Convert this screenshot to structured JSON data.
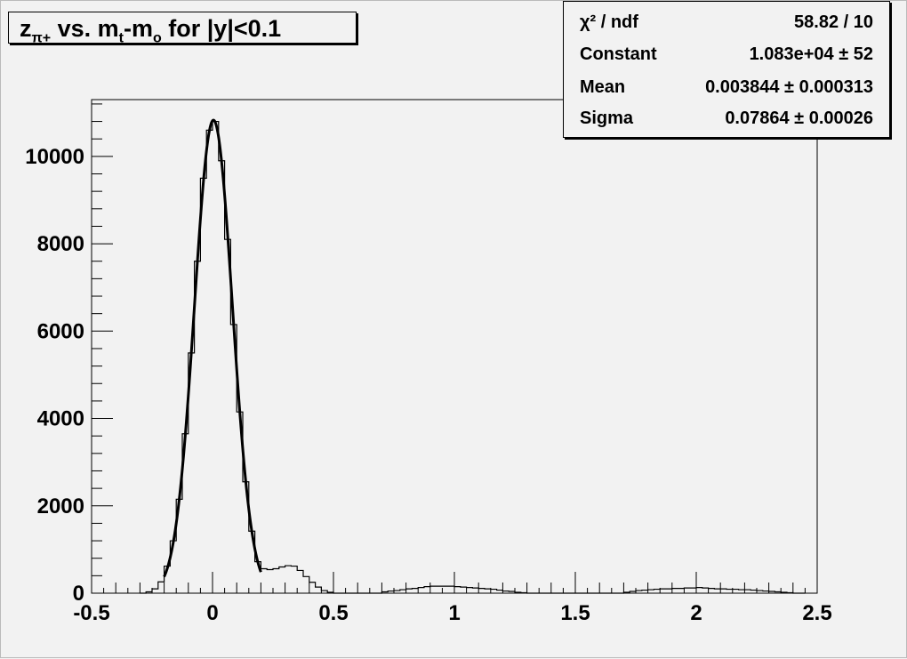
{
  "chart_data": {
    "type": "bar",
    "histogram_style": "step",
    "title": "z_π+ vs. m_t-m_o for |y|<0.1",
    "title_parts": {
      "z": "z",
      "z_sub": "π+",
      "mid": " vs. m",
      "t_sub": "t",
      "dash": "-m",
      "o_sub": "o",
      "tail": " for |y|<0.1"
    },
    "xlim": [
      -0.5,
      2.5
    ],
    "ylim": [
      0,
      11300
    ],
    "x_ticks": [
      "-0.5",
      "0",
      "0.5",
      "1",
      "1.5",
      "2",
      "2.5"
    ],
    "y_ticks": [
      "0",
      "2000",
      "4000",
      "6000",
      "8000",
      "10000"
    ],
    "bin_first_edge": -0.3,
    "bin_width": 0.025,
    "values": [
      0,
      30,
      100,
      260,
      620,
      1200,
      2150,
      3650,
      5500,
      7600,
      9500,
      10600,
      10800,
      9900,
      8100,
      6150,
      4150,
      2550,
      1420,
      720,
      560,
      540,
      560,
      600,
      630,
      620,
      520,
      380,
      250,
      140,
      60,
      20,
      0,
      0,
      0,
      0,
      0,
      0,
      0,
      0,
      30,
      50,
      60,
      80,
      100,
      110,
      130,
      150,
      160,
      160,
      160,
      160,
      150,
      140,
      130,
      120,
      110,
      100,
      90,
      70,
      50,
      40,
      20,
      10,
      0,
      0,
      0,
      0,
      0,
      0,
      0,
      0,
      0,
      0,
      0,
      0,
      0,
      0,
      0,
      0,
      20,
      40,
      60,
      70,
      80,
      90,
      100,
      100,
      110,
      110,
      120,
      120,
      130,
      120,
      110,
      100,
      100,
      90,
      90,
      80,
      80,
      70,
      60,
      50,
      40,
      30,
      20,
      10,
      0,
      0
    ],
    "fit": {
      "type": "gaus",
      "range": [
        -0.2,
        0.2
      ],
      "constant": 10830,
      "mean": 0.003844,
      "sigma": 0.07864
    },
    "stats": [
      {
        "key": "χ² / ndf",
        "value": "58.82 / 10"
      },
      {
        "key": "Constant",
        "value": "1.083e+04 ± 52"
      },
      {
        "key": "Mean",
        "value": "0.003844 ± 0.000313"
      },
      {
        "key": "Sigma",
        "value": "0.07864 ± 0.00026"
      }
    ],
    "colors": {
      "background": "#f2f2f2",
      "line": "#000000"
    }
  }
}
